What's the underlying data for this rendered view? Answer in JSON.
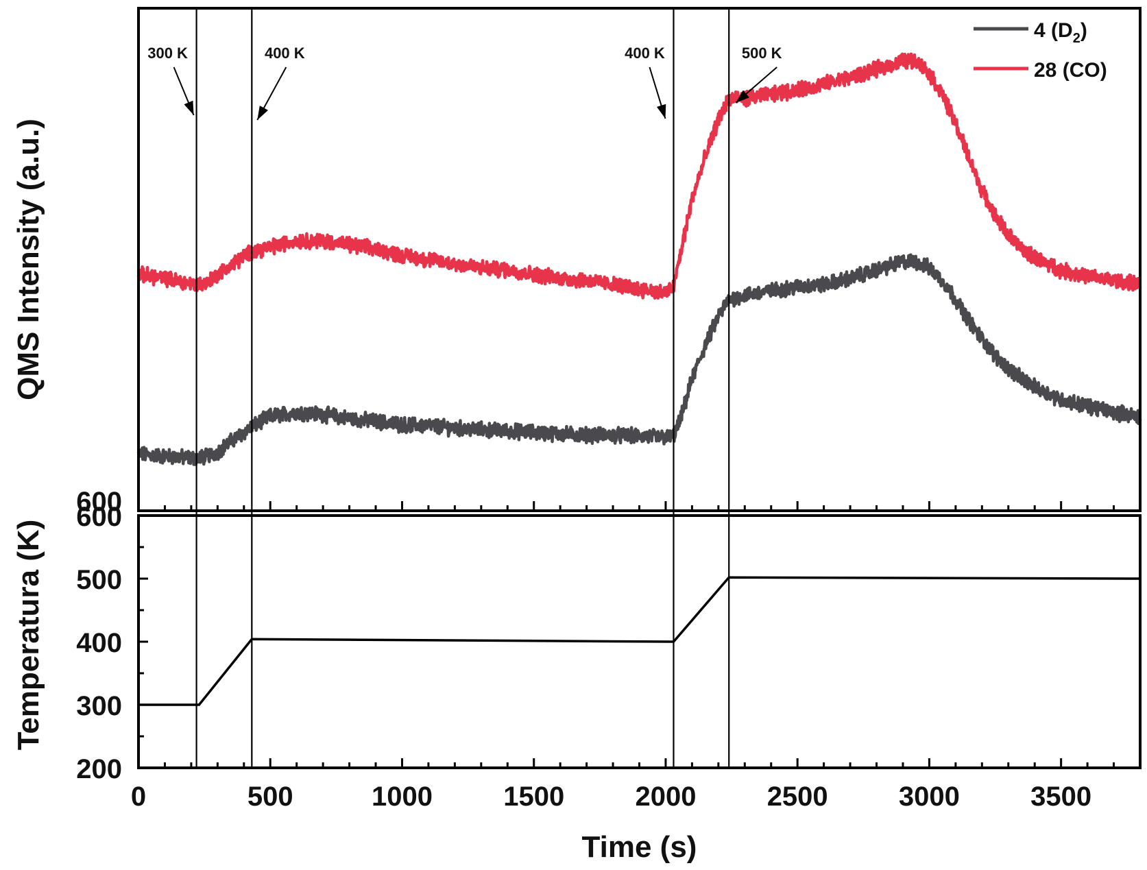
{
  "chart_data": [
    {
      "type": "line",
      "panel": "upper",
      "xlabel": "Time (s)",
      "ylabel": "QMS Intensity (a.u.)",
      "xlim": [
        0,
        3800
      ],
      "yticks_shown": false,
      "legend_position": "top-right",
      "legend": [
        {
          "label": "4   (D",
          "sub": "2",
          "close": ")",
          "series": "D2",
          "color": "#4a4a4e"
        },
        {
          "label": "28 (CO)",
          "sub": "",
          "close": "",
          "series": "CO",
          "color": "#e8344a"
        }
      ],
      "series": [
        {
          "key": "D2",
          "color": "#4a4a4e",
          "x": [
            0,
            100,
            220,
            260,
            300,
            350,
            430,
            500,
            600,
            700,
            800,
            900,
            1000,
            1100,
            1200,
            1300,
            1400,
            1500,
            1600,
            1700,
            1800,
            1900,
            2000,
            2030,
            2060,
            2100,
            2150,
            2200,
            2240,
            2300,
            2400,
            2500,
            2600,
            2700,
            2800,
            2850,
            2900,
            2950,
            3000,
            3050,
            3100,
            3150,
            3200,
            3250,
            3300,
            3350,
            3400,
            3450,
            3500,
            3600,
            3700,
            3800
          ],
          "y": [
            0.07,
            0.065,
            0.06,
            0.065,
            0.075,
            0.1,
            0.135,
            0.16,
            0.17,
            0.165,
            0.155,
            0.148,
            0.14,
            0.138,
            0.132,
            0.128,
            0.125,
            0.122,
            0.118,
            0.116,
            0.115,
            0.113,
            0.11,
            0.112,
            0.16,
            0.25,
            0.33,
            0.4,
            0.44,
            0.45,
            0.46,
            0.47,
            0.475,
            0.49,
            0.51,
            0.52,
            0.53,
            0.53,
            0.515,
            0.485,
            0.44,
            0.39,
            0.345,
            0.305,
            0.275,
            0.25,
            0.23,
            0.215,
            0.2,
            0.185,
            0.17,
            0.16
          ]
        },
        {
          "key": "CO",
          "color": "#e8344a",
          "x": [
            0,
            100,
            220,
            260,
            300,
            350,
            430,
            500,
            600,
            700,
            800,
            900,
            1000,
            1100,
            1200,
            1300,
            1400,
            1500,
            1600,
            1700,
            1800,
            1900,
            2000,
            2030,
            2060,
            2100,
            2150,
            2200,
            2240,
            2300,
            2400,
            2500,
            2600,
            2700,
            2800,
            2850,
            2900,
            2950,
            3000,
            3050,
            3100,
            3150,
            3200,
            3250,
            3300,
            3350,
            3400,
            3450,
            3500,
            3600,
            3700,
            3800
          ],
          "y": [
            0.5,
            0.49,
            0.475,
            0.48,
            0.5,
            0.52,
            0.555,
            0.565,
            0.58,
            0.58,
            0.57,
            0.56,
            0.545,
            0.535,
            0.525,
            0.515,
            0.51,
            0.5,
            0.49,
            0.485,
            0.475,
            0.465,
            0.455,
            0.47,
            0.56,
            0.68,
            0.78,
            0.87,
            0.92,
            0.92,
            0.93,
            0.94,
            0.955,
            0.97,
            0.99,
            1.0,
            1.01,
            1.01,
            0.98,
            0.93,
            0.86,
            0.78,
            0.7,
            0.64,
            0.595,
            0.56,
            0.54,
            0.525,
            0.51,
            0.495,
            0.485,
            0.475
          ]
        }
      ],
      "annotations": [
        {
          "text": "300 K",
          "x": 220
        },
        {
          "text": "400 K",
          "x": 430
        },
        {
          "text": "400 K",
          "x": 2030
        },
        {
          "text": "500 K",
          "x": 2240
        }
      ]
    },
    {
      "type": "line",
      "panel": "lower",
      "xlabel": "Time (s)",
      "ylabel": "Temperatura (K)",
      "xlim": [
        0,
        3800
      ],
      "ylim": [
        200,
        600
      ],
      "xticks": [
        0,
        500,
        1000,
        1500,
        2000,
        2500,
        3000,
        3500
      ],
      "xtick_labels": [
        "0",
        "500",
        "1000",
        "1500",
        "2000",
        "2500",
        "3000",
        "3500"
      ],
      "yticks": [
        200,
        300,
        400,
        500,
        600
      ],
      "ytick_labels": [
        "200",
        "300",
        "400",
        "500",
        "600"
      ],
      "extra_top_label": "600",
      "series": [
        {
          "key": "temperature",
          "color": "#000000",
          "x": [
            0,
            230,
            430,
            2030,
            2240,
            3800
          ],
          "y": [
            300,
            300,
            404,
            400,
            502,
            500
          ]
        }
      ]
    }
  ],
  "event_lines_x": [
    220,
    430,
    2030,
    2240
  ]
}
